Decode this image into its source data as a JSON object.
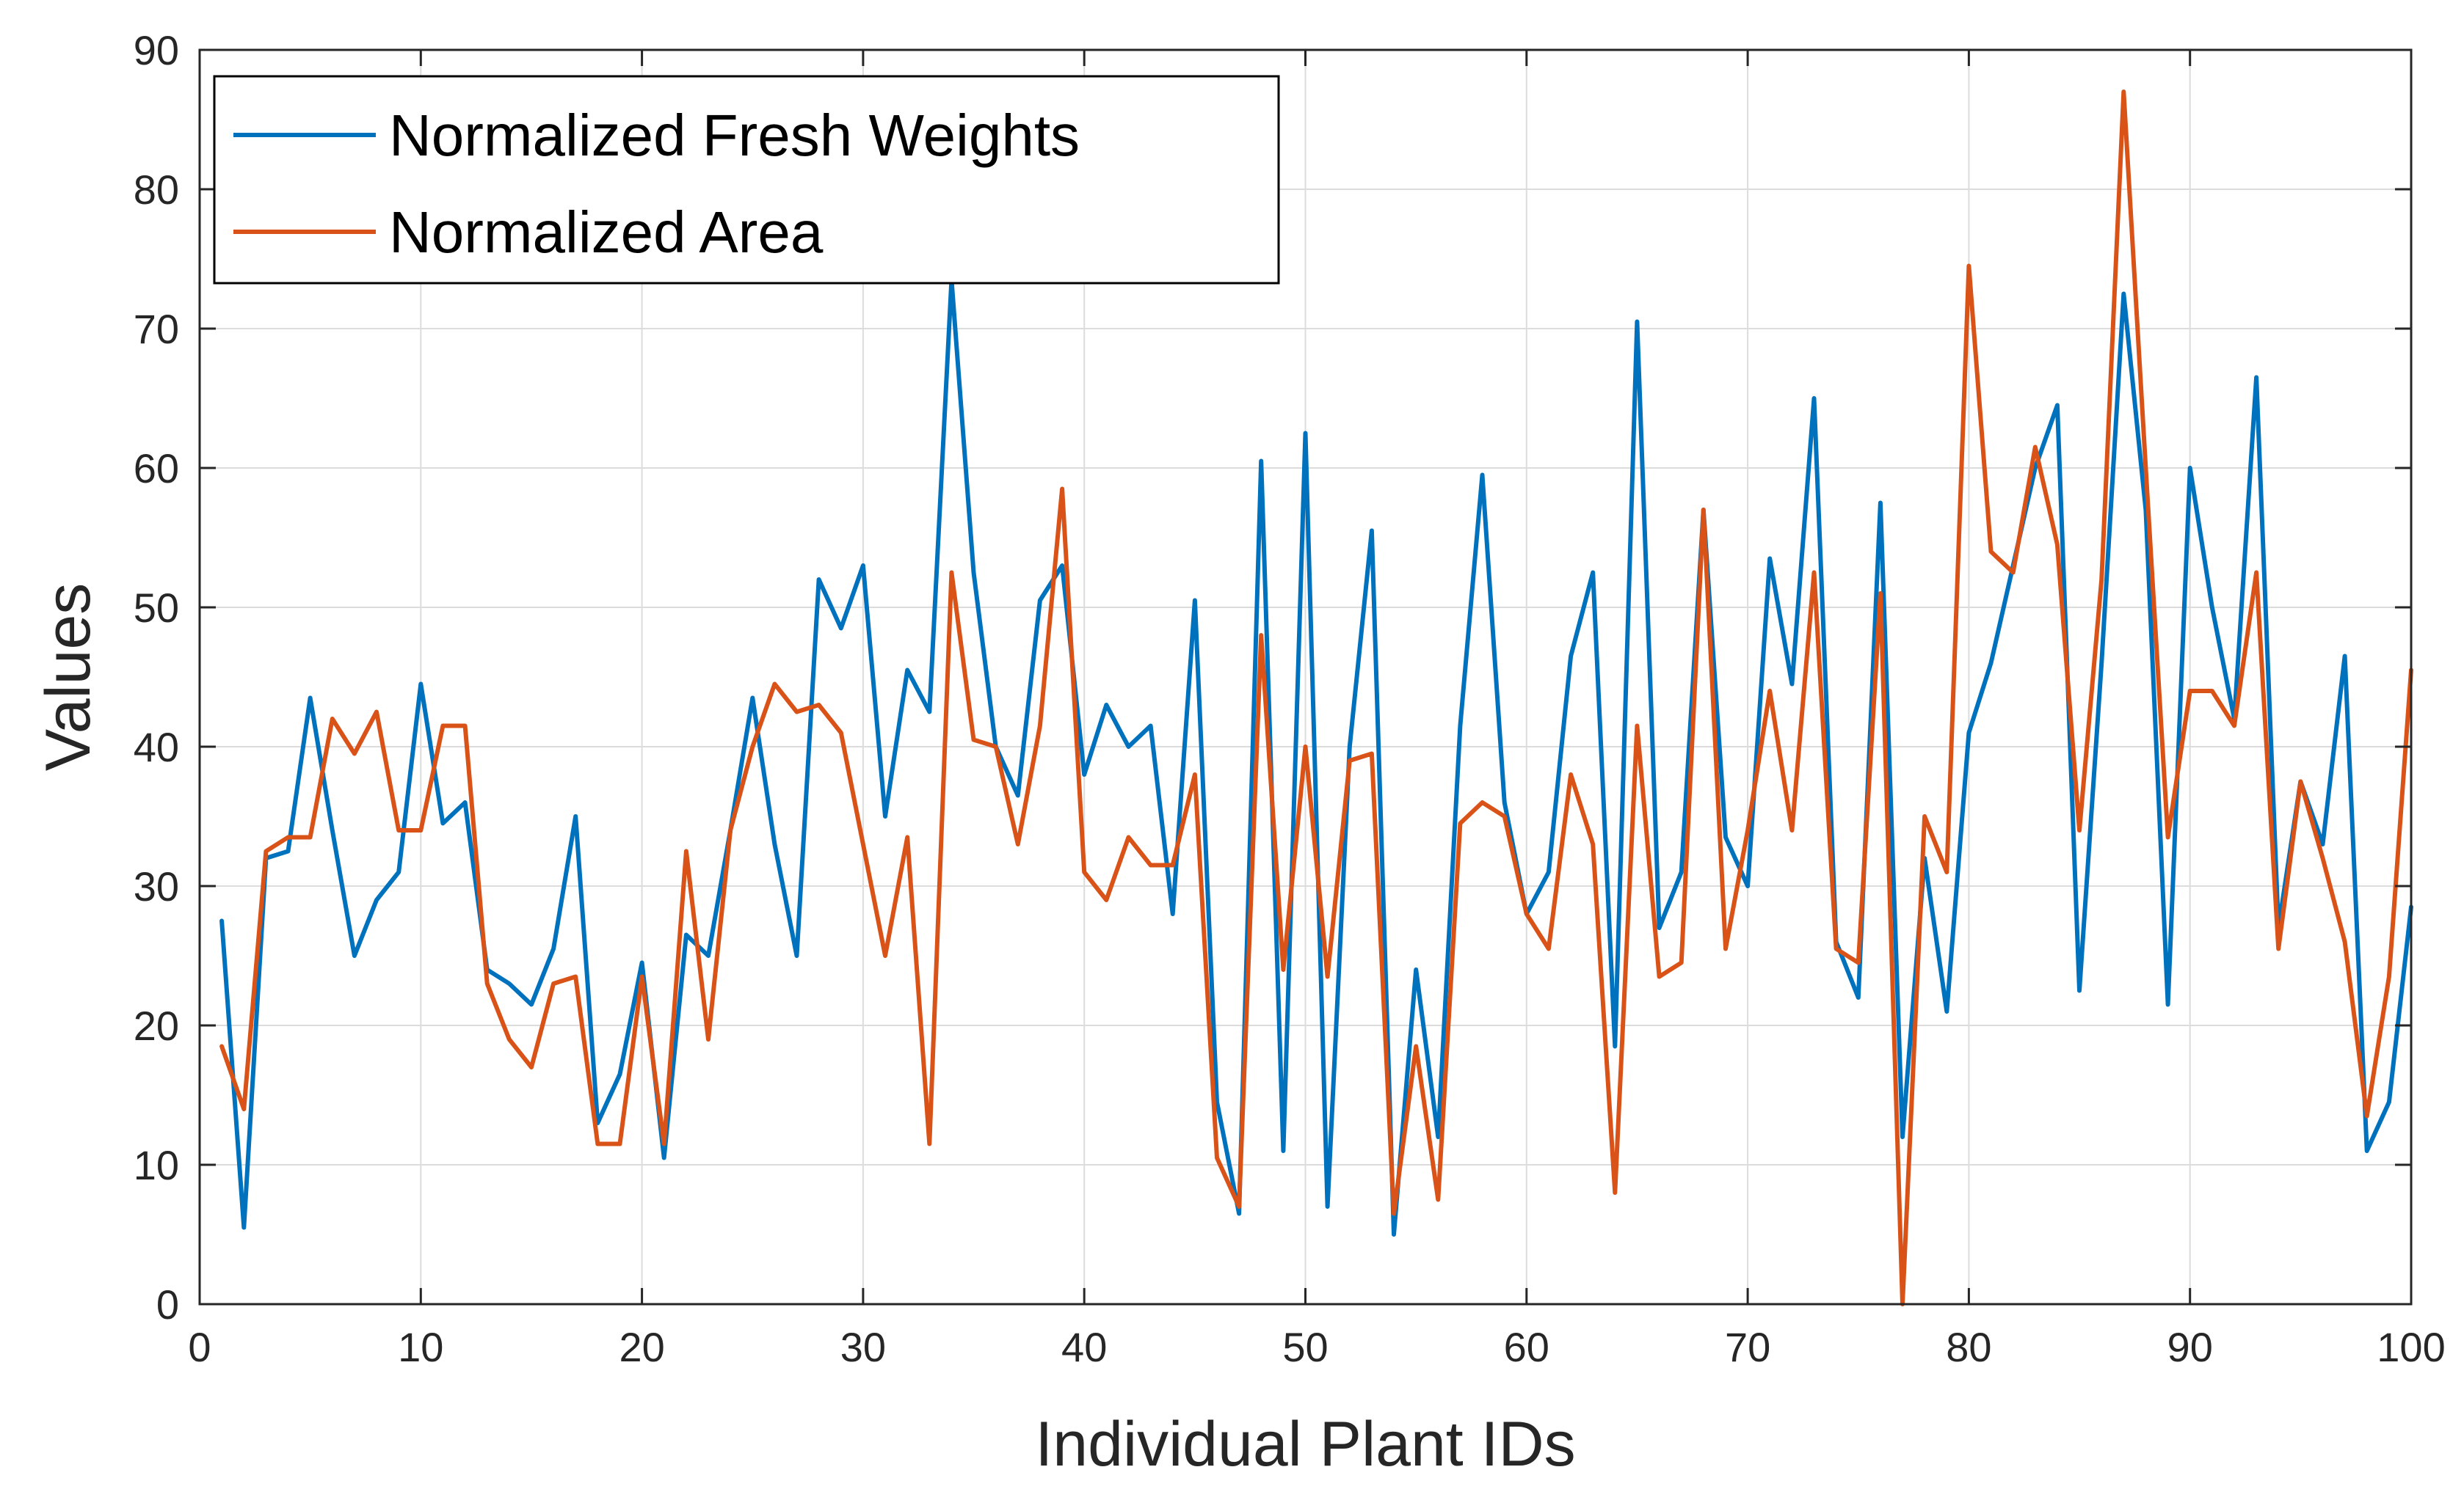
{
  "chart_data": {
    "type": "line",
    "title": "",
    "xlabel": "Individual Plant IDs",
    "ylabel": "Values",
    "xlim": [
      0,
      100
    ],
    "ylim": [
      0,
      90
    ],
    "xticks": [
      0,
      10,
      20,
      30,
      40,
      50,
      60,
      70,
      80,
      90,
      100
    ],
    "yticks": [
      0,
      10,
      20,
      30,
      40,
      50,
      60,
      70,
      80,
      90
    ],
    "grid": true,
    "legend_location": "top-left",
    "x": [
      1,
      2,
      3,
      4,
      5,
      6,
      7,
      8,
      9,
      10,
      11,
      12,
      13,
      14,
      15,
      16,
      17,
      18,
      19,
      20,
      21,
      22,
      23,
      24,
      25,
      26,
      27,
      28,
      29,
      30,
      31,
      32,
      33,
      34,
      35,
      36,
      37,
      38,
      39,
      40,
      41,
      42,
      43,
      44,
      45,
      46,
      47,
      48,
      49,
      50,
      51,
      52,
      53,
      54,
      55,
      56,
      57,
      58,
      59,
      60,
      61,
      62,
      63,
      64,
      65,
      66,
      67,
      68,
      69,
      70,
      71,
      72,
      73,
      74,
      75,
      76,
      77,
      78,
      79,
      80,
      81,
      82,
      83,
      84,
      85,
      86,
      87,
      88,
      89,
      90,
      91,
      92,
      93,
      94,
      95,
      96,
      97,
      98,
      99,
      100
    ],
    "series": [
      {
        "name": "Normalized Fresh Weights",
        "color": "#0072BD",
        "values": [
          27.5,
          5.5,
          32,
          32.5,
          43.5,
          34,
          25,
          29,
          31,
          44.5,
          34.5,
          36,
          24,
          23,
          21.5,
          25.5,
          35,
          13,
          16.5,
          24.5,
          10.5,
          26.5,
          25,
          34,
          43.5,
          33,
          25,
          52,
          48.5,
          53,
          35,
          45.5,
          42.5,
          73.5,
          52.5,
          40,
          36.5,
          50.5,
          53,
          38,
          43,
          40,
          41.5,
          28,
          50.5,
          14.5,
          6.5,
          60.5,
          11,
          62.5,
          7,
          40,
          55.5,
          5,
          24,
          12,
          41.5,
          59.5,
          36,
          28,
          31,
          46.5,
          52.5,
          18.5,
          70.5,
          27,
          31,
          57,
          33.5,
          30,
          53.5,
          44.5,
          65,
          26,
          22,
          57.5,
          12,
          32,
          21,
          41,
          46,
          53,
          60,
          64.5,
          22.5,
          46,
          72.5,
          57,
          21.5,
          60,
          50,
          42,
          66.5,
          27,
          37.5,
          33,
          46.5,
          11,
          14.5,
          28.5
        ]
      },
      {
        "name": "Normalized Area",
        "color": "#D95319",
        "values": [
          18.5,
          14,
          32.5,
          33.5,
          33.5,
          42,
          39.5,
          42.5,
          34,
          34,
          41.5,
          41.5,
          23,
          19,
          17,
          23,
          23.5,
          11.5,
          11.5,
          23.5,
          11.5,
          32.5,
          19,
          34,
          40,
          44.5,
          42.5,
          43,
          41,
          33,
          25,
          33.5,
          11.5,
          52.5,
          40.5,
          40,
          33,
          41.5,
          58.5,
          31,
          29,
          33.5,
          31.5,
          31.5,
          38,
          10.5,
          7,
          48,
          24,
          40,
          23.5,
          39,
          39.5,
          6.5,
          18.5,
          7.5,
          34.5,
          36,
          35,
          28,
          25.5,
          38,
          33,
          8,
          41.5,
          23.5,
          24.5,
          57,
          25.5,
          34,
          44,
          34,
          52.5,
          25.5,
          24.5,
          51,
          0,
          35,
          31,
          74.5,
          54,
          52.5,
          61.5,
          54.5,
          34,
          52,
          87,
          60,
          33.5,
          44,
          44,
          41.5,
          52.5,
          25.5,
          37.5,
          32,
          26,
          13.5,
          23.5,
          45.5
        ]
      }
    ]
  }
}
